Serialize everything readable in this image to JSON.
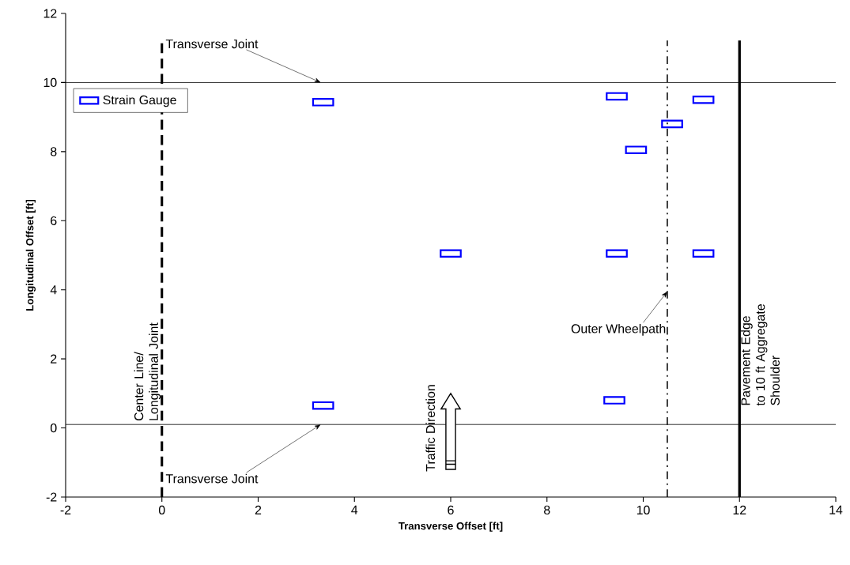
{
  "chart_data": {
    "type": "scatter",
    "xlabel": "Transverse Offset [ft]",
    "ylabel": "Longitudinal Offset [ft]",
    "xlim": [
      -2,
      14
    ],
    "xticks": [
      -2,
      0,
      2,
      4,
      6,
      8,
      10,
      12,
      14
    ],
    "ylim": [
      -2,
      12
    ],
    "yticks": [
      -2,
      0,
      2,
      4,
      6,
      8,
      10,
      12
    ],
    "series": [
      {
        "name": "Strain Gauge",
        "color": "#0000ff",
        "x": [
          3.35,
          9.45,
          11.25,
          10.6,
          9.85,
          6.0,
          9.45,
          11.25,
          3.35,
          9.4
        ],
        "values": [
          9.43,
          9.6,
          9.5,
          8.8,
          8.05,
          5.05,
          5.05,
          5.05,
          0.65,
          0.8
        ]
      }
    ],
    "marker": "square",
    "legend": "top left",
    "grid": false,
    "ref_lines": [
      {
        "axis": "x",
        "value": 0,
        "label": "Center Line/ Longitudinal Joint",
        "color": "#000000",
        "line_style": "dashed"
      },
      {
        "axis": "x",
        "value": 10.5,
        "label": "Outer Wheelpath",
        "color": "#000000",
        "line_style": "dashdot"
      },
      {
        "axis": "x",
        "value": 12,
        "label": "Pavement Edge to 10 ft Aggregate Shoulder",
        "color": "#000000",
        "line_style": "solid"
      },
      {
        "axis": "y",
        "value": 10,
        "label": "Transverse Joint",
        "color": "#000000",
        "line_style": "solid"
      },
      {
        "axis": "y",
        "value": 0.1,
        "label": "Transverse Joint",
        "color": "#000000",
        "line_style": "solid"
      }
    ],
    "annotations": [
      "Traffic Direction"
    ]
  }
}
